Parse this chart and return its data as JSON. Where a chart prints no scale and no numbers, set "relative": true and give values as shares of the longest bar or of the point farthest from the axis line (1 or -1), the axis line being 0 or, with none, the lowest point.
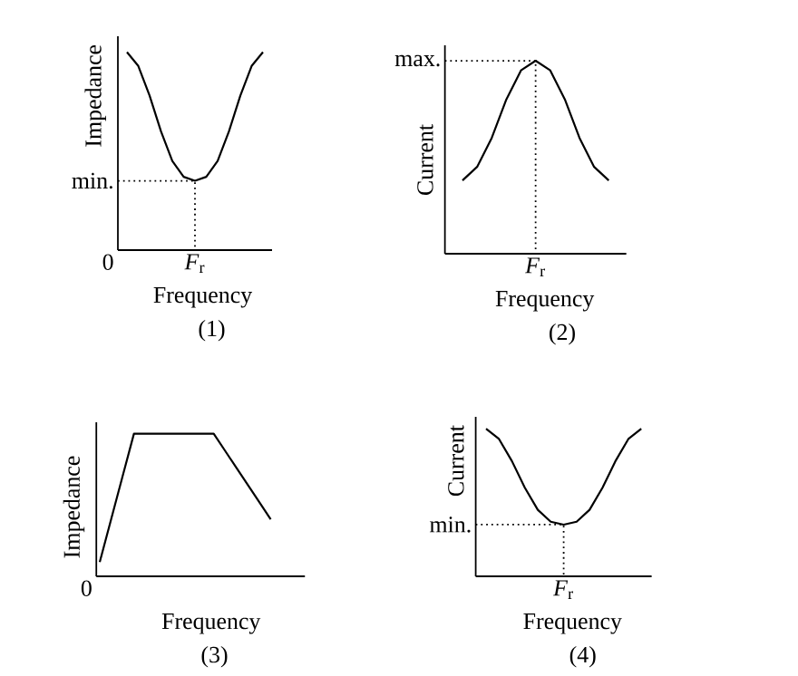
{
  "chart_data": [
    {
      "type": "line",
      "relative": true,
      "ylabel": "Impedance",
      "xlabel": "Frequency",
      "color": "#000000",
      "categories": [
        null,
        null,
        null,
        null,
        null,
        null,
        null,
        null,
        null,
        null,
        null,
        null,
        null
      ],
      "values": [
        1,
        0.93,
        0.78,
        0.6,
        0.45,
        0.37,
        0.35,
        0.37,
        0.45,
        0.6,
        0.78,
        0.93,
        1
      ],
      "ref_lines": [
        {
          "axis": "y",
          "value": 0.35,
          "label": "min.",
          "line_style": "dotted"
        }
      ],
      "annotations": [
        "(1)",
        "*F*$_{r}$",
        "0"
      ]
    },
    {
      "type": "line",
      "relative": true,
      "ylabel": "Current",
      "xlabel": "Frequency",
      "color": "#000000",
      "categories": [
        null,
        null,
        null,
        null,
        null,
        null,
        null,
        null,
        null,
        null,
        null
      ],
      "values": [
        0.38,
        0.45,
        0.6,
        0.8,
        0.95,
        1,
        0.95,
        0.8,
        0.6,
        0.45,
        0.38
      ],
      "ref_lines": [
        {
          "axis": "y",
          "value": 1,
          "label": "max.",
          "line_style": "dotted"
        }
      ],
      "annotations": [
        "(2)",
        "*F*$_{r}$"
      ]
    },
    {
      "type": "line",
      "relative": true,
      "ylabel": "Impedance",
      "xlabel": "Frequency",
      "color": "#000000",
      "categories": [
        null,
        null,
        null,
        null,
        null,
        null,
        null,
        null,
        null,
        null,
        null,
        null,
        null,
        null,
        null,
        null
      ],
      "values": [
        0.1,
        0.4,
        0.7,
        1,
        1,
        1,
        1,
        1,
        1,
        1,
        1,
        0.88,
        0.76,
        0.64,
        0.52,
        0.4
      ],
      "annotations": [
        "(3)",
        "0"
      ]
    },
    {
      "type": "line",
      "relative": true,
      "ylabel": "Current",
      "xlabel": "Frequency",
      "color": "#000000",
      "categories": [
        null,
        null,
        null,
        null,
        null,
        null,
        null,
        null,
        null,
        null,
        null,
        null,
        null
      ],
      "values": [
        1,
        0.93,
        0.78,
        0.6,
        0.45,
        0.37,
        0.35,
        0.37,
        0.45,
        0.6,
        0.78,
        0.93,
        1
      ],
      "ref_lines": [
        {
          "axis": "y",
          "value": 0.35,
          "label": "min.",
          "line_style": "dotted"
        }
      ],
      "annotations": [
        "(4)",
        "*F*$_{r}$"
      ]
    }
  ]
}
